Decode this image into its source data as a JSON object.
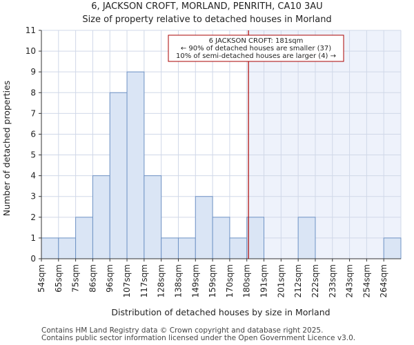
{
  "chart_data": {
    "type": "bar",
    "title": "6, JACKSON CROFT, MORLAND, PENRITH, CA10 3AU",
    "subtitle": "Size of property relative to detached houses in Morland",
    "xlabel": "Distribution of detached houses by size in Morland",
    "ylabel": "Number of detached properties",
    "categories": [
      "54sqm",
      "65sqm",
      "75sqm",
      "86sqm",
      "96sqm",
      "107sqm",
      "117sqm",
      "128sqm",
      "138sqm",
      "149sqm",
      "159sqm",
      "170sqm",
      "180sqm",
      "191sqm",
      "201sqm",
      "212sqm",
      "222sqm",
      "233sqm",
      "243sqm",
      "254sqm",
      "264sqm"
    ],
    "values": [
      1,
      1,
      2,
      4,
      8,
      9,
      4,
      1,
      1,
      3,
      2,
      1,
      2,
      0,
      0,
      2,
      0,
      0,
      0,
      0,
      1
    ],
    "ylim": [
      0,
      11
    ],
    "yticks": [
      0,
      1,
      2,
      3,
      4,
      5,
      6,
      7,
      8,
      9,
      10,
      11
    ],
    "grid": true,
    "marker": {
      "value_sqm": 181,
      "color": "#aa0000"
    },
    "annotation": {
      "lines": [
        "6 JACKSON CROFT: 181sqm",
        "← 90% of detached houses are smaller (37)",
        "10% of semi-detached houses are larger (4) →"
      ]
    },
    "colors": {
      "bar_fill": "#dae5f5",
      "bar_stroke": "#6f93c5",
      "highlight_region": "#eef2fb",
      "grid": "#d0d8e8"
    }
  },
  "footer": {
    "line1": "Contains HM Land Registry data © Crown copyright and database right 2025.",
    "line2": "Contains public sector information licensed under the Open Government Licence v3.0."
  }
}
